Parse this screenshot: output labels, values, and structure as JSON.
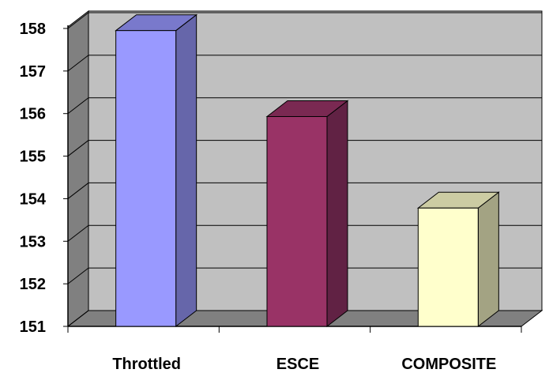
{
  "chart_data": {
    "type": "bar",
    "title": "",
    "xlabel": "",
    "ylabel": "",
    "categories": [
      "Throttled",
      "ESCE",
      "COMPOSITE"
    ],
    "values": [
      157.95,
      155.93,
      153.78
    ],
    "ylim": [
      151,
      158
    ],
    "yticks": [
      "151",
      "152",
      "153",
      "154",
      "155",
      "156",
      "157",
      "158"
    ],
    "grid": true,
    "legend": "none",
    "three_d": true,
    "colors": {
      "bars_front": [
        "#9999ff",
        "#993366",
        "#ffffcc"
      ],
      "bars_side": [
        "#6666aa",
        "#612244",
        "#a3a383"
      ],
      "bars_top": [
        "#7979cc",
        "#7a2952",
        "#cccca3"
      ],
      "wall": "#c0c0c0",
      "side_wall": "#808080",
      "floor": "#808080",
      "gridline": "#000000"
    }
  }
}
